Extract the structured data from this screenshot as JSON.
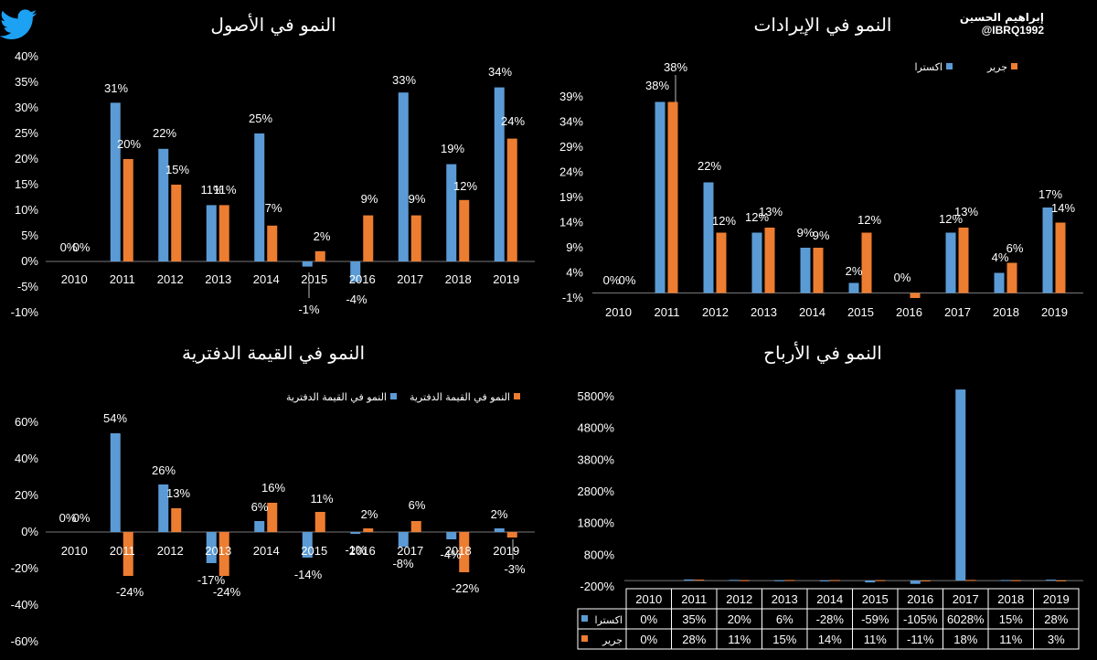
{
  "brand": {
    "name": "إبراهيم الحسين",
    "handle": "@IBRQ1992",
    "icon": "twitter-bird-icon",
    "color": "#1DA1F2"
  },
  "colors": {
    "extra": "#5B9BD5",
    "jarir": "#ED7D31"
  },
  "chart_data": [
    {
      "id": "assets",
      "type": "bar",
      "title": "النمو في الأصول",
      "categories": [
        "2010",
        "2011",
        "2012",
        "2013",
        "2014",
        "2015",
        "2016",
        "2017",
        "2018",
        "2019"
      ],
      "y_ticks": [
        "40%",
        "35%",
        "30%",
        "25%",
        "20%",
        "15%",
        "10%",
        "5%",
        "0%",
        "-5%",
        "-10%"
      ],
      "ylim": [
        -10,
        40
      ],
      "series": [
        {
          "name": "اكسترا",
          "values": [
            0,
            31,
            22,
            11,
            25,
            -1,
            -4,
            33,
            19,
            34
          ],
          "labels": [
            "0%",
            "31%",
            "22%",
            "11%",
            "25%",
            "-1%",
            "-4%",
            "33%",
            "19%",
            "34%"
          ]
        },
        {
          "name": "جرير",
          "values": [
            0,
            20,
            15,
            11,
            7,
            2,
            9,
            9,
            12,
            24
          ],
          "labels": [
            "0%",
            "20%",
            "15%",
            "11%",
            "7%",
            "2%",
            "9%",
            "9%",
            "12%",
            "24%"
          ]
        }
      ]
    },
    {
      "id": "revenue",
      "type": "bar",
      "title": "النمو في الإيرادات",
      "legend": [
        "اكسترا",
        "جرير"
      ],
      "categories": [
        "2010",
        "2011",
        "2012",
        "2013",
        "2014",
        "2015",
        "2016",
        "2017",
        "2018",
        "2019"
      ],
      "y_ticks": [
        "39%",
        "34%",
        "29%",
        "24%",
        "19%",
        "14%",
        "9%",
        "4%",
        "-1%"
      ],
      "ylim": [
        -1,
        39
      ],
      "series": [
        {
          "name": "اكسترا",
          "values": [
            0,
            38,
            22,
            12,
            9,
            2,
            0,
            12,
            4,
            17
          ],
          "labels": [
            "0%",
            "38%",
            "22%",
            "12%",
            "9%",
            "2%",
            "0%",
            "12%",
            "4%",
            "17%"
          ]
        },
        {
          "name": "جرير",
          "values": [
            0,
            38,
            12,
            13,
            9,
            12,
            -1,
            13,
            6,
            14
          ],
          "labels": [
            "0%",
            "38%",
            "12%",
            "13%",
            "9%",
            "12%",
            "",
            "13%",
            "6%",
            "14%"
          ]
        }
      ]
    },
    {
      "id": "bookvalue",
      "type": "bar",
      "title": "النمو في القيمة الدفترية",
      "legend": [
        "النمو في القيمة الدفترية",
        "النمو في القيمة الدفترية"
      ],
      "categories": [
        "2010",
        "2011",
        "2012",
        "2013",
        "2014",
        "2015",
        "2016",
        "2017",
        "2018",
        "2019"
      ],
      "y_ticks": [
        "60%",
        "40%",
        "20%",
        "0%",
        "-20%",
        "-40%",
        "-60%"
      ],
      "ylim": [
        -60,
        60
      ],
      "series": [
        {
          "name": "اكسترا",
          "values": [
            0,
            54,
            26,
            -17,
            6,
            -14,
            -1,
            -8,
            -4,
            2
          ],
          "labels": [
            "0%",
            "54%",
            "26%",
            "-17%",
            "6%",
            "-14%",
            "-1%",
            "-8%",
            "-4%",
            "2%"
          ]
        },
        {
          "name": "جرير",
          "values": [
            0,
            -24,
            13,
            -24,
            16,
            11,
            2,
            6,
            -22,
            -3
          ],
          "labels": [
            "0%",
            "-24%",
            "13%",
            "-24%",
            "16%",
            "11%",
            "2%",
            "6%",
            "-22%",
            "-3%"
          ]
        }
      ]
    },
    {
      "id": "profits",
      "type": "bar",
      "title": "النمو في الأرباح",
      "categories": [
        "2010",
        "2011",
        "2012",
        "2013",
        "2014",
        "2015",
        "2016",
        "2017",
        "2018",
        "2019"
      ],
      "y_ticks": [
        "5800%",
        "4800%",
        "3800%",
        "2800%",
        "1800%",
        "800%",
        "-200%"
      ],
      "ylim": [
        -200,
        5800
      ],
      "series": [
        {
          "name": "اكسترا",
          "values": [
            0,
            35,
            20,
            6,
            -28,
            -59,
            -105,
            6028,
            15,
            28
          ],
          "labels": [
            "0%",
            "35%",
            "20%",
            "6%",
            "-28%",
            "-59%",
            "-105%",
            "6028%",
            "15%",
            "28%"
          ]
        },
        {
          "name": "جرير",
          "values": [
            0,
            28,
            11,
            15,
            14,
            11,
            -11,
            18,
            11,
            3
          ],
          "labels": [
            "0%",
            "28%",
            "11%",
            "15%",
            "14%",
            "11%",
            "-11%",
            "18%",
            "11%",
            "3%"
          ]
        }
      ]
    }
  ]
}
